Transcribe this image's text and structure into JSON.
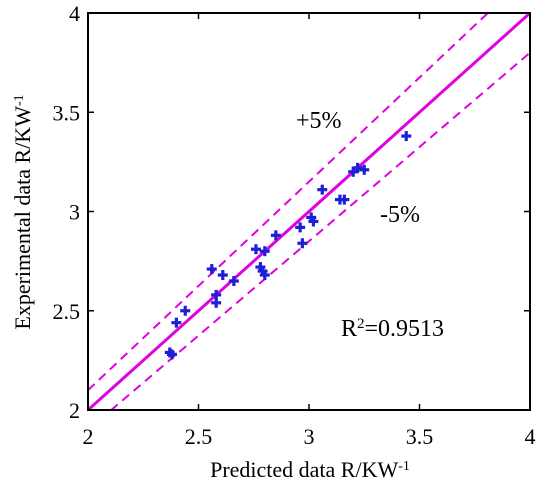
{
  "chart_data": {
    "type": "scatter",
    "xlabel": "Predicted data R/KW",
    "xlabel_sup": "-1",
    "ylabel": "Experimental data R/KW",
    "ylabel_sup": "-1",
    "xlim": [
      2,
      4
    ],
    "ylim": [
      2,
      4
    ],
    "xticks": [
      "2",
      "2.5",
      "3",
      "3.5",
      "4"
    ],
    "yticks": [
      "2",
      "2.5",
      "3",
      "3.5",
      "4"
    ],
    "grid": false,
    "colors": {
      "points": "#1f1fd6",
      "lines": "#e000e0"
    },
    "reference_lines": [
      {
        "label": "",
        "slope": 1.0,
        "style": "solid"
      },
      {
        "label": "+5%",
        "slope": 1.05,
        "style": "dashed"
      },
      {
        "label": "-5%",
        "slope": 0.95,
        "style": "dashed"
      }
    ],
    "annotations": {
      "plus_label": "+5%",
      "minus_label": "-5%",
      "r2_prefix": "R",
      "r2_sup": "2",
      "r2_value": "=0.9513"
    },
    "points": [
      {
        "x": 2.37,
        "y": 2.29
      },
      {
        "x": 2.38,
        "y": 2.28
      },
      {
        "x": 2.4,
        "y": 2.44
      },
      {
        "x": 2.44,
        "y": 2.5
      },
      {
        "x": 2.56,
        "y": 2.71
      },
      {
        "x": 2.58,
        "y": 2.54
      },
      {
        "x": 2.58,
        "y": 2.58
      },
      {
        "x": 2.61,
        "y": 2.68
      },
      {
        "x": 2.66,
        "y": 2.65
      },
      {
        "x": 2.76,
        "y": 2.81
      },
      {
        "x": 2.78,
        "y": 2.72
      },
      {
        "x": 2.79,
        "y": 2.7
      },
      {
        "x": 2.8,
        "y": 2.68
      },
      {
        "x": 2.8,
        "y": 2.8
      },
      {
        "x": 2.85,
        "y": 2.88
      },
      {
        "x": 2.96,
        "y": 2.92
      },
      {
        "x": 2.97,
        "y": 2.84
      },
      {
        "x": 3.01,
        "y": 2.97
      },
      {
        "x": 3.02,
        "y": 2.95
      },
      {
        "x": 3.06,
        "y": 3.11
      },
      {
        "x": 3.14,
        "y": 3.06
      },
      {
        "x": 3.16,
        "y": 3.06
      },
      {
        "x": 3.2,
        "y": 3.2
      },
      {
        "x": 3.22,
        "y": 3.22
      },
      {
        "x": 3.25,
        "y": 3.21
      },
      {
        "x": 3.44,
        "y": 3.38
      }
    ]
  }
}
